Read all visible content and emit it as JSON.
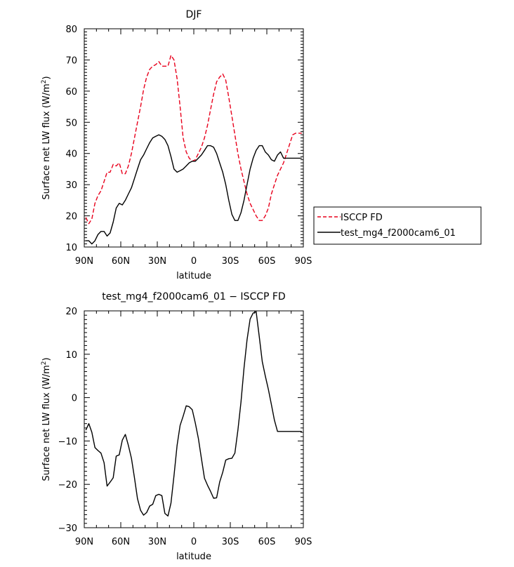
{
  "chart_data": [
    {
      "type": "line",
      "title": "DJF",
      "xlabel": "latitude",
      "ylabel": "Surface net LW flux (W/m",
      "ylabel_sup": "2",
      "ylabel_end": ")",
      "xlim": [
        90,
        -90
      ],
      "ylim": [
        10,
        80
      ],
      "xticks": [
        90,
        60,
        30,
        0,
        -30,
        -60,
        -90
      ],
      "xtick_labels": [
        "90N",
        "60N",
        "30N",
        "0",
        "30S",
        "60S",
        "90S"
      ],
      "yticks": [
        10,
        20,
        30,
        40,
        50,
        60,
        70,
        80
      ],
      "ytick_labels": [
        "10",
        "20",
        "30",
        "40",
        "50",
        "60",
        "70",
        "80"
      ],
      "legend_position": "right",
      "series": [
        {
          "name": "ISCCP FD",
          "color": "#e8001c",
          "dash": "dashed",
          "x": [
            88.75,
            86.25,
            83.75,
            81.25,
            78.75,
            76.25,
            73.75,
            71.25,
            68.75,
            66.25,
            63.75,
            61.25,
            58.75,
            56.25,
            53.75,
            51.25,
            48.75,
            46.25,
            43.75,
            41.25,
            38.75,
            36.25,
            33.75,
            31.25,
            28.75,
            26.25,
            23.75,
            21.25,
            18.75,
            16.25,
            13.75,
            11.25,
            8.75,
            6.25,
            3.75,
            1.25,
            -1.25,
            -3.75,
            -6.25,
            -8.75,
            -11.25,
            -13.75,
            -16.25,
            -18.75,
            -21.25,
            -23.75,
            -26.25,
            -28.75,
            -31.25,
            -33.75,
            -36.25,
            -38.75,
            -41.25,
            -43.75,
            -46.25,
            -48.75,
            -51.25,
            -53.75,
            -56.25,
            -58.75,
            -61.25,
            -63.75,
            -66.25,
            -68.75,
            -71.25,
            -73.75,
            -76.25,
            -78.75,
            -81.25,
            -83.75,
            -86.25,
            -88.75
          ],
          "y": [
            19.5,
            17.5,
            19,
            24,
            26.5,
            28,
            31,
            34,
            34,
            36.5,
            36,
            37,
            33.5,
            33.5,
            36,
            40,
            45,
            50,
            55,
            60.5,
            64.5,
            67,
            68,
            68.5,
            69.5,
            68,
            68,
            68,
            71.5,
            70,
            64,
            55,
            45,
            40.5,
            38.5,
            37.5,
            38,
            40,
            42,
            45,
            49,
            54,
            59,
            63,
            64.5,
            65.5,
            63.5,
            58,
            52,
            46,
            40,
            35,
            31,
            27,
            24,
            22,
            20,
            18.5,
            18.5,
            20,
            22.5,
            27,
            30,
            33,
            35,
            37,
            40,
            43,
            46,
            46.5,
            46.5,
            46.5
          ]
        },
        {
          "name": "test_mg4_f2000cam6_01",
          "color": "#000000",
          "dash": "solid",
          "x": [
            88.75,
            86.25,
            83.75,
            81.25,
            78.75,
            76.25,
            73.75,
            71.25,
            68.75,
            66.25,
            63.75,
            61.25,
            58.75,
            56.25,
            53.75,
            51.25,
            48.75,
            46.25,
            43.75,
            41.25,
            38.75,
            36.25,
            33.75,
            31.25,
            28.75,
            26.25,
            23.75,
            21.25,
            18.75,
            16.25,
            13.75,
            11.25,
            8.75,
            6.25,
            3.75,
            1.25,
            -1.25,
            -3.75,
            -6.25,
            -8.75,
            -11.25,
            -13.75,
            -16.25,
            -18.75,
            -21.25,
            -23.75,
            -26.25,
            -28.75,
            -31.25,
            -33.75,
            -36.25,
            -38.75,
            -41.25,
            -43.75,
            -46.25,
            -48.75,
            -51.25,
            -53.75,
            -56.25,
            -58.75,
            -61.25,
            -63.75,
            -66.25,
            -68.75,
            -71.25,
            -73.75,
            -76.25,
            -78.75,
            -81.25,
            -83.75,
            -86.25,
            -88.75
          ],
          "y": [
            12,
            12,
            11,
            12,
            14,
            15,
            15,
            13.5,
            14.5,
            18,
            22.5,
            24,
            23.5,
            25,
            27,
            29,
            32,
            35,
            38,
            39.5,
            41.5,
            43.5,
            45,
            45.5,
            46,
            45.5,
            44.5,
            42.5,
            39,
            35,
            34,
            34.5,
            35,
            36,
            37,
            37.5,
            37.5,
            38.5,
            39.5,
            41,
            42.5,
            42.5,
            42,
            40,
            37,
            34,
            30,
            25,
            20.5,
            18.5,
            18.5,
            21,
            25,
            30,
            35,
            38.5,
            41,
            42.5,
            42.5,
            40.5,
            39.5,
            38,
            37.5,
            39.5,
            40.5,
            38.5,
            38.5,
            38.5,
            38.5,
            38.5,
            38.5,
            38.5
          ]
        }
      ]
    },
    {
      "type": "line",
      "title": "test_mg4_f2000cam6_01 − ISCCP FD",
      "xlabel": "latitude",
      "ylabel": "Surface net LW flux (W/m",
      "ylabel_sup": "2",
      "ylabel_end": ")",
      "xlim": [
        90,
        -90
      ],
      "ylim": [
        -30,
        20
      ],
      "xticks": [
        90,
        60,
        30,
        0,
        -30,
        -60,
        -90
      ],
      "xtick_labels": [
        "90N",
        "60N",
        "30N",
        "0",
        "30S",
        "60S",
        "90S"
      ],
      "yticks": [
        -30,
        -20,
        -10,
        0,
        10,
        20
      ],
      "ytick_labels": [
        "−30",
        "−20",
        "−10",
        "0",
        "10",
        "20"
      ],
      "series": [
        {
          "color": "#000000",
          "dash": "solid",
          "x": [
            88.75,
            86.25,
            83.75,
            81.25,
            78.75,
            76.25,
            73.75,
            71.25,
            68.75,
            66.25,
            63.75,
            61.25,
            58.75,
            56.25,
            53.75,
            51.25,
            48.75,
            46.25,
            43.75,
            41.25,
            38.75,
            36.25,
            33.75,
            31.25,
            28.75,
            26.25,
            23.75,
            21.25,
            18.75,
            16.25,
            13.75,
            11.25,
            8.75,
            6.25,
            3.75,
            1.25,
            -1.25,
            -3.75,
            -6.25,
            -8.75,
            -11.25,
            -13.75,
            -16.25,
            -18.75,
            -21.25,
            -23.75,
            -26.25,
            -28.75,
            -31.25,
            -33.75,
            -36.25,
            -38.75,
            -41.25,
            -43.75,
            -46.25,
            -48.75,
            -51.25,
            -53.75,
            -56.25,
            -58.75,
            -61.25,
            -63.75,
            -66.25,
            -68.75,
            -71.25,
            -73.75,
            -76.25,
            -78.75,
            -81.25,
            -83.75,
            -86.25,
            -88.75
          ],
          "y": [
            -7.5,
            -6,
            -8,
            -11.5,
            -12.2,
            -12.8,
            -15,
            -20.4,
            -19.5,
            -18.5,
            -13.5,
            -13.2,
            -9.8,
            -8.5,
            -11,
            -14,
            -18.5,
            -23.3,
            -26,
            -27.1,
            -26.5,
            -25,
            -24.6,
            -22.6,
            -22.3,
            -22.6,
            -26.7,
            -27.3,
            -24.3,
            -18,
            -11,
            -6.4,
            -4.3,
            -1.9,
            -2.1,
            -2.8,
            -5.9,
            -9.4,
            -14,
            -18.6,
            -20.2,
            -21.6,
            -23.2,
            -23.1,
            -19.5,
            -17.2,
            -14.4,
            -14.1,
            -14,
            -12.8,
            -7.5,
            -1,
            6.8,
            13.3,
            18.1,
            19.5,
            19.8,
            14.1,
            8.3,
            5,
            1.9,
            -1.6,
            -5.2,
            -7.8,
            -7.8,
            -7.8,
            -7.8,
            -7.8,
            -7.8,
            -7.8,
            -7.8,
            -7.8
          ]
        }
      ]
    }
  ]
}
